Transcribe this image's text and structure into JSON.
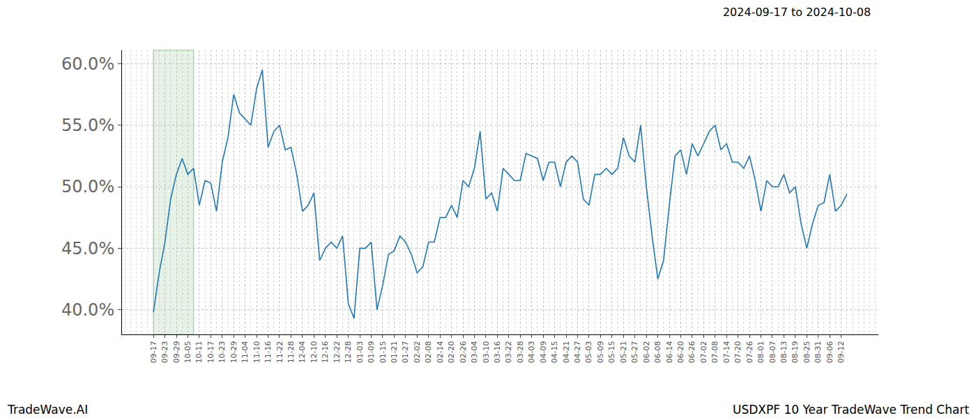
{
  "chart_data": {
    "type": "line",
    "title": "2024-09-17 to 2024-10-08",
    "footer": [
      "TradeWave.AI",
      "USDXPF 10 Year TradeWave Trend Chart"
    ],
    "color": "#1f77b4",
    "grid": true,
    "highlight": [
      0,
      7
    ],
    "categories": [
      "09-17",
      null,
      "09-23",
      null,
      "09-29",
      null,
      "10-05",
      null,
      "10-11",
      null,
      "10-17",
      null,
      "10-23",
      null,
      "10-29",
      null,
      "11-04",
      null,
      "11-10",
      null,
      "11-16",
      null,
      "11-22",
      null,
      "11-28",
      null,
      "12-04",
      null,
      "12-10",
      null,
      "12-16",
      null,
      "12-22",
      null,
      "12-28",
      null,
      "01-03",
      null,
      "01-09",
      null,
      "01-15",
      null,
      "01-21",
      null,
      "01-27",
      null,
      "02-02",
      null,
      "02-08",
      null,
      "02-14",
      null,
      "02-20",
      null,
      "02-26",
      null,
      "03-04",
      null,
      "03-10",
      null,
      "03-16",
      null,
      "03-22",
      null,
      "03-28",
      null,
      "04-03",
      null,
      "04-09",
      null,
      "04-15",
      null,
      "04-21",
      null,
      "04-27",
      null,
      "05-03",
      null,
      "05-09",
      null,
      "05-15",
      null,
      "05-21",
      null,
      "05-27",
      null,
      "06-02",
      null,
      "06-08",
      null,
      "06-14",
      null,
      "06-20",
      null,
      "06-26",
      null,
      "07-02",
      null,
      "07-08",
      null,
      "07-14",
      null,
      "07-20",
      null,
      "07-26",
      null,
      "08-01",
      null,
      "08-07",
      null,
      "08-13",
      null,
      "08-19",
      null,
      "08-25",
      null,
      "08-31",
      null,
      "09-06",
      null,
      "09-12",
      null
    ],
    "values": [
      39.8,
      43,
      45.5,
      49,
      51,
      52.3,
      51,
      51.5,
      48.5,
      50.5,
      50.3,
      48,
      52,
      54,
      57.5,
      56,
      55.5,
      55,
      58,
      59.5,
      53.2,
      54.5,
      55,
      53,
      53.2,
      51,
      48,
      48.5,
      49.5,
      44,
      45,
      45.5,
      45,
      46,
      40.5,
      39.3,
      45,
      45,
      45.5,
      40,
      42,
      44.5,
      44.8,
      46,
      45.5,
      44.5,
      43,
      43.5,
      45.5,
      45.5,
      47.5,
      47.5,
      48.5,
      47.5,
      50.5,
      50,
      51.5,
      54.5,
      49,
      49.5,
      48,
      51.5,
      51,
      50.5,
      50.5,
      52.7,
      52.5,
      52.3,
      50.5,
      52,
      52,
      50,
      52,
      52.5,
      52,
      49,
      48.5,
      51,
      51,
      51.5,
      51,
      51.5,
      54,
      52.5,
      52,
      55,
      50,
      46,
      42.5,
      44,
      48.5,
      52.5,
      53,
      51,
      53.5,
      52.5,
      53.5,
      54.5,
      55,
      53,
      53.5,
      52,
      52,
      51.5,
      52.5,
      50.5,
      48,
      50.5,
      50,
      50,
      51,
      49.5,
      50,
      47,
      45,
      47,
      48.5,
      48.7,
      51,
      48,
      48.5,
      49.4
    ],
    "ylim": [
      38,
      61.1
    ],
    "yticks": [
      {
        "value": 40,
        "label": "40.0%"
      },
      {
        "value": 45,
        "label": "45.0%"
      },
      {
        "value": 50,
        "label": "50.0%"
      },
      {
        "value": 55,
        "label": "55.0%"
      },
      {
        "value": 60,
        "label": "60.0%"
      }
    ]
  }
}
